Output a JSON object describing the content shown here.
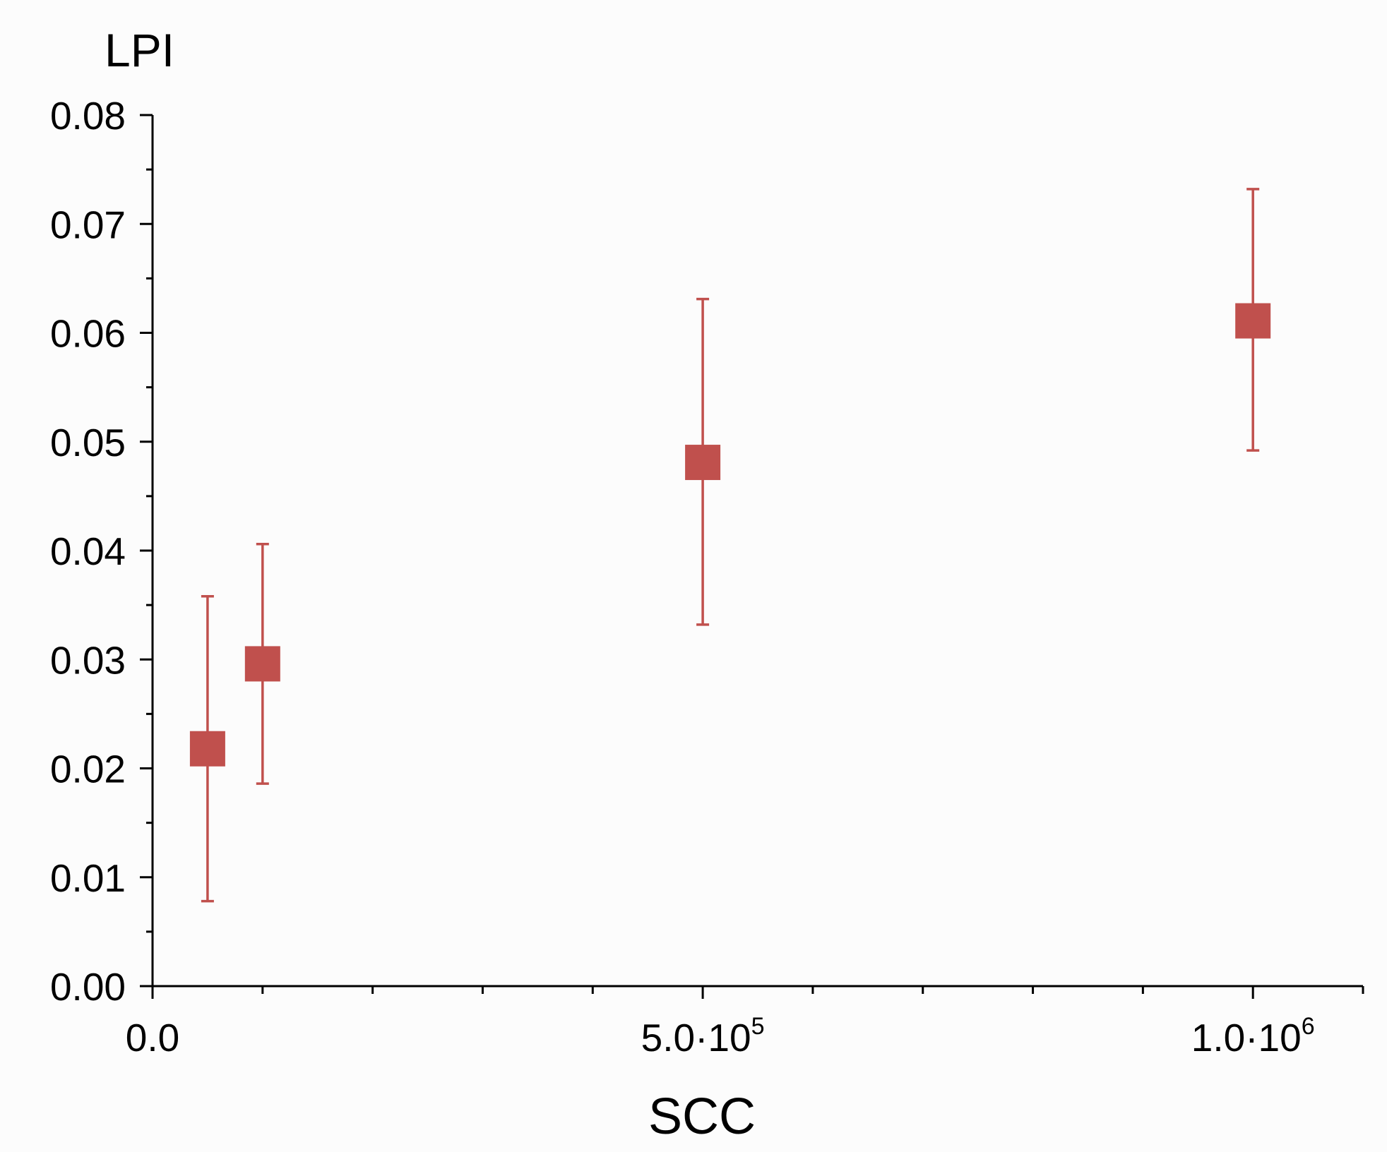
{
  "chart_data": {
    "type": "scatter",
    "title": "",
    "xlabel": "SCC",
    "ylabel": "LPI",
    "xlim": [
      0,
      1100000
    ],
    "ylim": [
      0,
      0.08
    ],
    "x_ticks": [
      {
        "value": 0,
        "mantissa": "0.0",
        "exponent": ""
      },
      {
        "value": 500000,
        "mantissa": "5.0·10",
        "exponent": "5"
      },
      {
        "value": 1000000,
        "mantissa": "1.0·10",
        "exponent": "6"
      }
    ],
    "x_minor_step": 100000,
    "y_ticks": [
      "0.00",
      "0.01",
      "0.02",
      "0.03",
      "0.04",
      "0.05",
      "0.06",
      "0.07",
      "0.08"
    ],
    "y_minor_step": 0.005,
    "grid": false,
    "legend": "none",
    "marker": "square",
    "color": "#c0504d",
    "points": [
      {
        "x": 50000,
        "y": 0.0218,
        "y_low": 0.0078,
        "y_high": 0.0358
      },
      {
        "x": 100000,
        "y": 0.0296,
        "y_low": 0.0186,
        "y_high": 0.0406
      },
      {
        "x": 500000,
        "y": 0.0481,
        "y_low": 0.0332,
        "y_high": 0.0631
      },
      {
        "x": 1000000,
        "y": 0.0611,
        "y_low": 0.0492,
        "y_high": 0.0732
      }
    ]
  }
}
